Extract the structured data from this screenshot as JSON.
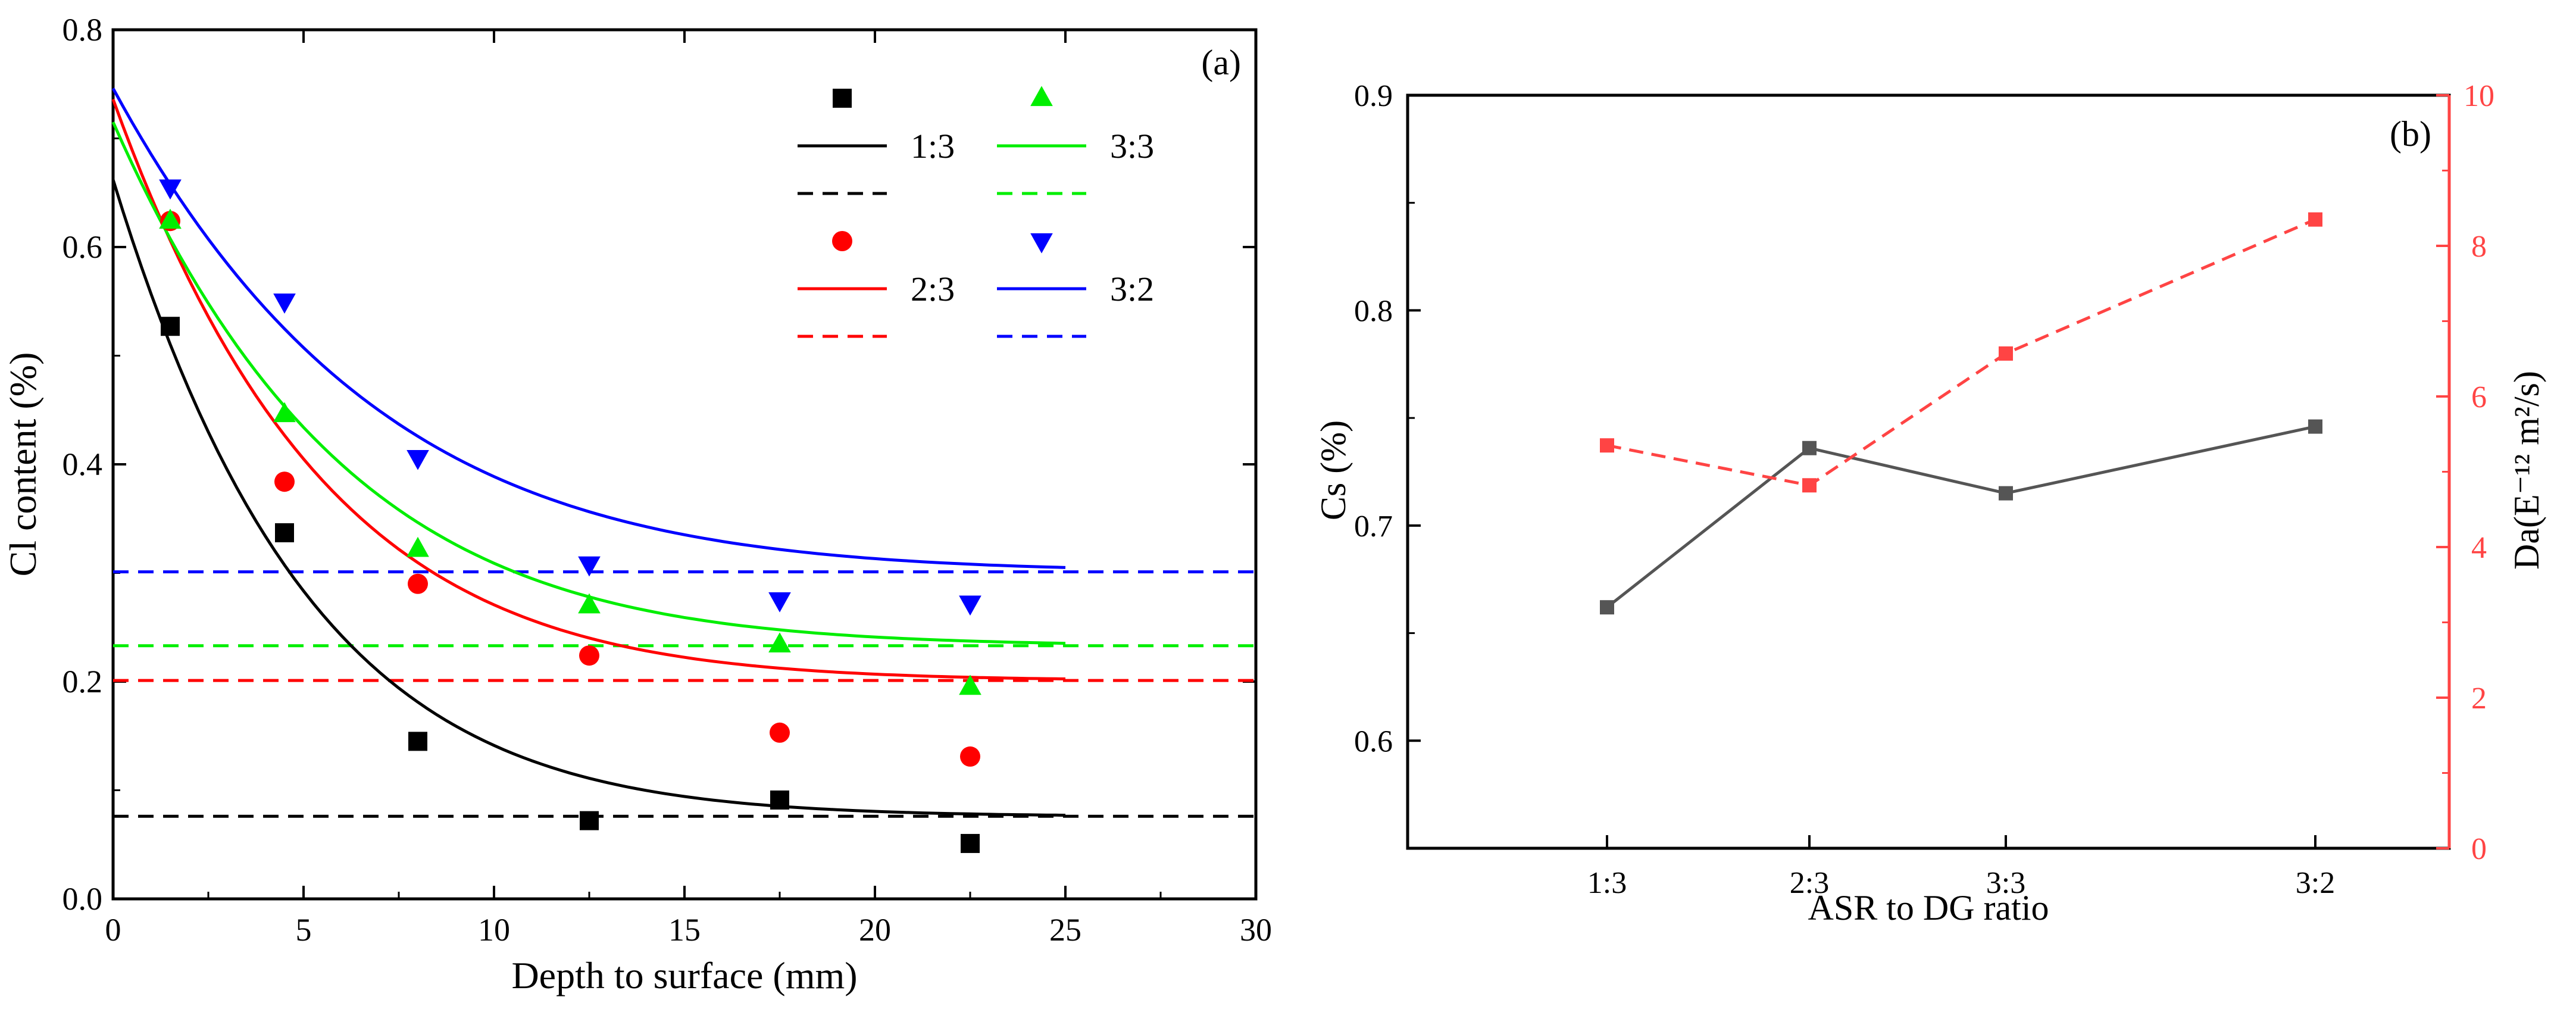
{
  "chart_data": [
    {
      "type": "scatter",
      "panel_label": "(a)",
      "xlabel": "Depth to surface (mm)",
      "ylabel": "Cl content (%)",
      "xlim": [
        0,
        30
      ],
      "ylim": [
        0,
        0.8
      ],
      "xticks": [
        0,
        5,
        10,
        15,
        20,
        25,
        30
      ],
      "yticks": [
        0.0,
        0.2,
        0.4,
        0.6,
        0.8
      ],
      "xtick_labels": [
        "0",
        "5",
        "10",
        "15",
        "20",
        "25",
        "30"
      ],
      "ytick_labels": [
        "0.0",
        "0.2",
        "0.4",
        "0.6",
        "0.8"
      ],
      "grid": false,
      "legend_position": "top-right",
      "series": [
        {
          "name": "1:3",
          "color": "#000000",
          "marker": "square",
          "x": [
            1.5,
            4.5,
            8,
            12.5,
            17.5,
            22.5
          ],
          "y": [
            0.527,
            0.337,
            0.145,
            0.072,
            0.091,
            0.051
          ],
          "fit": {
            "Cs": 0.662,
            "C0": 0.076,
            "k": 0.196
          },
          "baseline": 0.076
        },
        {
          "name": "2:3",
          "color": "#ff0000",
          "marker": "circle",
          "x": [
            1.5,
            4.5,
            8,
            12.5,
            17.5,
            22.5
          ],
          "y": [
            0.624,
            0.384,
            0.29,
            0.224,
            0.153,
            0.131
          ],
          "fit": {
            "Cs": 0.736,
            "C0": 0.201,
            "k": 0.182
          },
          "baseline": 0.201
        },
        {
          "name": "3:3",
          "color": "#00ee00",
          "marker": "triangle-up",
          "x": [
            1.5,
            4.5,
            8,
            12.5,
            17.5,
            22.5
          ],
          "y": [
            0.624,
            0.446,
            0.322,
            0.27,
            0.234,
            0.195
          ],
          "fit": {
            "Cs": 0.715,
            "C0": 0.233,
            "k": 0.165
          },
          "baseline": 0.233
        },
        {
          "name": "3:2",
          "color": "#0000ff",
          "marker": "triangle-down",
          "x": [
            1.5,
            4.5,
            8,
            12.5,
            17.5,
            22.5
          ],
          "y": [
            0.655,
            0.55,
            0.406,
            0.308,
            0.275,
            0.272
          ],
          "fit": {
            "Cs": 0.746,
            "C0": 0.301,
            "k": 0.145
          },
          "baseline": 0.301
        }
      ]
    },
    {
      "type": "line",
      "panel_label": "(b)",
      "xlabel": "ASR to DG ratio",
      "ylabel": "Cs (%)",
      "y2label": "Da(E⁻¹² m²/s)",
      "categories": [
        "1:3",
        "2:3",
        "3:3",
        "3:2"
      ],
      "ylim": [
        0.55,
        0.9
      ],
      "y2lim": [
        0,
        10
      ],
      "yticks": [
        0.6,
        0.7,
        0.8,
        0.9
      ],
      "ytick_labels": [
        "0.6",
        "0.7",
        "0.8",
        "0.9"
      ],
      "y2ticks": [
        0,
        2,
        4,
        6,
        8,
        10
      ],
      "y2tick_labels": [
        "0",
        "2",
        "4",
        "6",
        "8",
        "10"
      ],
      "grid": false,
      "series": [
        {
          "axis": "left",
          "color": "#555555",
          "style": "solid",
          "marker": "square",
          "values": [
            0.662,
            0.736,
            0.715,
            0.746
          ]
        },
        {
          "axis": "right",
          "color": "#ff4444",
          "style": "dashed",
          "marker": "square",
          "values": [
            5.35,
            4.82,
            6.57,
            8.35
          ]
        }
      ]
    }
  ]
}
